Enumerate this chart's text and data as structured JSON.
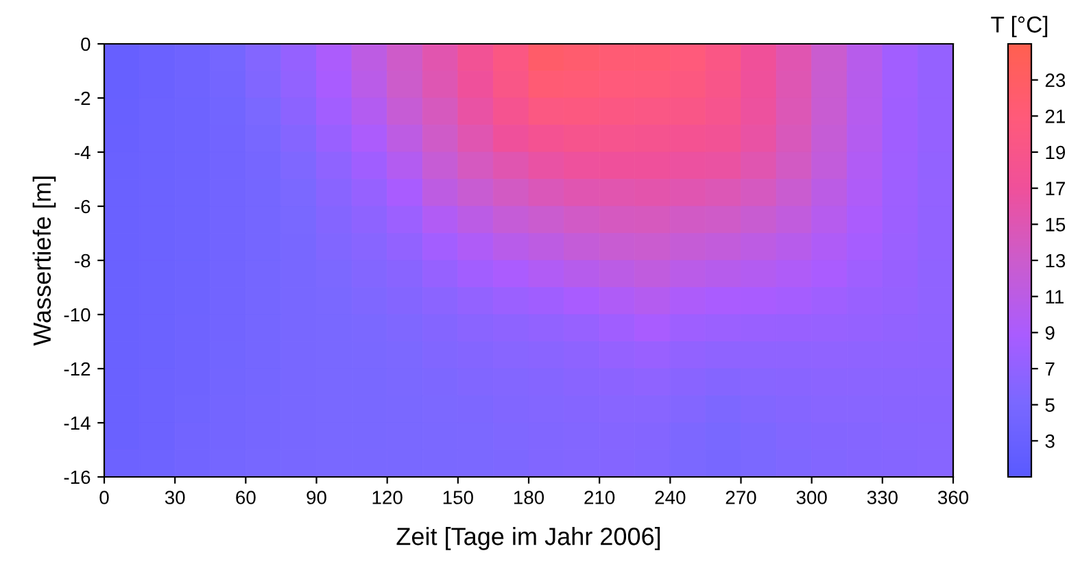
{
  "chart_data": {
    "type": "heatmap",
    "xlabel": "Zeit [Tage im Jahr 2006]",
    "ylabel": "Wassertiefe [m]",
    "clabel": "T [°C]",
    "x": [
      7.5,
      22.5,
      37.5,
      52.5,
      67.5,
      82.5,
      97.5,
      112.5,
      127.5,
      142.5,
      157.5,
      172.5,
      187.5,
      202.5,
      217.5,
      232.5,
      247.5,
      262.5,
      277.5,
      292.5,
      307.5,
      322.5,
      337.5,
      352.5
    ],
    "xlim": [
      0,
      360
    ],
    "xticks": [
      0,
      30,
      60,
      90,
      120,
      150,
      180,
      210,
      240,
      270,
      300,
      330,
      360
    ],
    "ylim": [
      -16,
      0
    ],
    "yticks": [
      -16,
      -14,
      -12,
      -10,
      -8,
      -6,
      -4,
      -2,
      0
    ],
    "clim": [
      1,
      25
    ],
    "cticks": [
      3,
      5,
      7,
      9,
      11,
      13,
      15,
      17,
      19,
      21,
      23
    ],
    "cells": [
      [
        2.6,
        3.2,
        3.8,
        4.5,
        5.8,
        7.2,
        9.2,
        11.2,
        13.2,
        15.4,
        17.6,
        19.8,
        22.5,
        22,
        21.5,
        21.5,
        20.8,
        19.5,
        17.2,
        15.2,
        12.8,
        10.5,
        8.3,
        7.2
      ],
      [
        2.7,
        3.2,
        3.7,
        4.3,
        5.6,
        7,
        8.8,
        10.8,
        13,
        15,
        17,
        19.3,
        21.5,
        21.3,
        20.8,
        20.7,
        20.2,
        19,
        17,
        15,
        12.7,
        10.4,
        8.3,
        7.2
      ],
      [
        2.8,
        3.3,
        3.6,
        4.1,
        5.2,
        6.6,
        8.3,
        10,
        12.3,
        14.2,
        16.2,
        18.3,
        20,
        20.2,
        19.8,
        19.6,
        19.3,
        18.5,
        16.7,
        14.8,
        12.5,
        10.3,
        8.2,
        7.2
      ],
      [
        2.9,
        3.3,
        3.6,
        4,
        4.8,
        6,
        7.6,
        9.2,
        11.2,
        13.3,
        15.2,
        17,
        18,
        18.6,
        18.5,
        18.4,
        18,
        17.6,
        16.2,
        14.4,
        12.2,
        10.1,
        8.2,
        7.2
      ],
      [
        3,
        3.3,
        3.6,
        4,
        4.6,
        5.5,
        6.8,
        8.2,
        10,
        12.3,
        14,
        15.3,
        16.2,
        16.8,
        17,
        17,
        16.6,
        16.4,
        15.3,
        13.7,
        11.8,
        9.8,
        8.1,
        7.1
      ],
      [
        3,
        3.3,
        3.6,
        4,
        4.5,
        5.2,
        6.3,
        7.3,
        8.8,
        11.3,
        12.5,
        13.7,
        14.5,
        15.2,
        15.4,
        15.6,
        15.2,
        14.8,
        14,
        12.7,
        11,
        9.5,
        8,
        7.1
      ],
      [
        3,
        3.3,
        3.6,
        4,
        4.4,
        5,
        5.9,
        6.7,
        7.8,
        9.8,
        11,
        12.1,
        12.8,
        13.5,
        14,
        14.2,
        13.6,
        13.3,
        12.6,
        11.6,
        10.3,
        9.1,
        7.9,
        7
      ],
      [
        3,
        3.4,
        3.6,
        4,
        4.4,
        4.9,
        5.6,
        6.2,
        7,
        8.4,
        9.6,
        10.6,
        11.3,
        12,
        12.5,
        12.8,
        12.2,
        11.8,
        11.2,
        10.5,
        9.6,
        8.6,
        7.7,
        7
      ],
      [
        3,
        3.4,
        3.6,
        4,
        4.4,
        4.8,
        5.3,
        5.8,
        6.3,
        7.3,
        8.3,
        9,
        9.8,
        10.4,
        11,
        11.5,
        10.8,
        10.4,
        10,
        9.5,
        8.9,
        8.1,
        7.5,
        6.9
      ],
      [
        3,
        3.4,
        3.6,
        4,
        4.4,
        4.8,
        5.1,
        5.5,
        5.9,
        6.5,
        7.1,
        7.7,
        8.2,
        8.8,
        9.6,
        10.1,
        9.3,
        8.9,
        8.8,
        8.5,
        8.1,
        7.6,
        7.3,
        6.9
      ],
      [
        3,
        3.4,
        3.7,
        4,
        4.5,
        4.8,
        5,
        5.2,
        5.5,
        5.9,
        6.4,
        6.7,
        7,
        7.4,
        8.2,
        8.8,
        8,
        7.7,
        7.6,
        7.5,
        7.4,
        7.2,
        7,
        6.8
      ],
      [
        3,
        3.4,
        3.7,
        4.1,
        4.5,
        4.8,
        5,
        5.1,
        5.3,
        5.6,
        5.9,
        6.2,
        6.4,
        6.7,
        7.2,
        7.6,
        7,
        6.8,
        6.8,
        6.8,
        6.9,
        6.8,
        6.8,
        6.7
      ],
      [
        3,
        3.5,
        3.8,
        4.2,
        4.5,
        4.8,
        5,
        5,
        5.2,
        5.4,
        5.6,
        5.8,
        6,
        6.3,
        6.6,
        6.8,
        6.3,
        6,
        6.2,
        6.3,
        6.5,
        6.5,
        6.5,
        6.5
      ],
      [
        3,
        3.5,
        3.9,
        4.3,
        4.6,
        4.8,
        5,
        5,
        5.1,
        5.3,
        5.4,
        5.6,
        5.8,
        6,
        6.2,
        6.2,
        5.8,
        5.4,
        5.7,
        6,
        6.2,
        6.2,
        6.3,
        6.3
      ],
      [
        3.1,
        3.5,
        4,
        4.3,
        4.6,
        4.9,
        5,
        5,
        5.1,
        5.2,
        5.3,
        5.5,
        5.6,
        5.8,
        6,
        5.9,
        5.4,
        5,
        5.4,
        5.7,
        5.9,
        6,
        6.1,
        6.2
      ],
      [
        3.5,
        3.6,
        4,
        4.4,
        4.7,
        4.9,
        5,
        5,
        5,
        5.1,
        5.2,
        5.4,
        5.6,
        5.8,
        5.9,
        5.7,
        5.2,
        4.8,
        5.2,
        5.5,
        5.7,
        5.9,
        6,
        6.1
      ]
    ]
  }
}
